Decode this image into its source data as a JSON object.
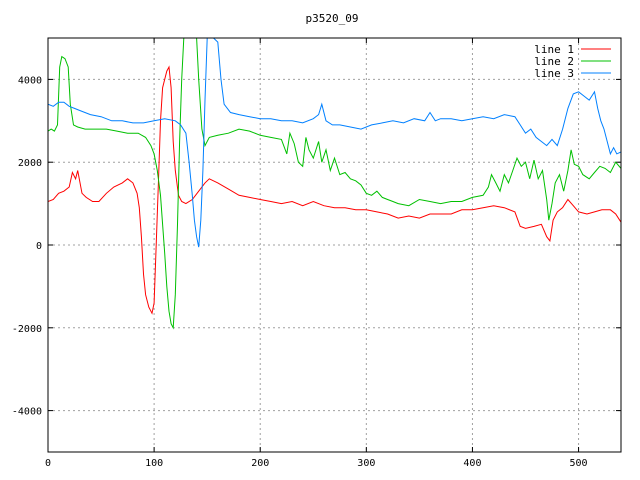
{
  "chart_data": {
    "type": "line",
    "title": "p3520_09",
    "xlabel": "",
    "ylabel": "",
    "xlim": [
      0,
      540
    ],
    "ylim": [
      -5000,
      5000
    ],
    "xticks": [
      0,
      100,
      200,
      300,
      400,
      500
    ],
    "yticks": [
      -4000,
      -2000,
      0,
      2000,
      4000
    ],
    "grid": true,
    "legend_position": "top-right",
    "series": [
      {
        "name": "line 1",
        "color": "#ff0000",
        "points": [
          [
            0,
            1050
          ],
          [
            5,
            1100
          ],
          [
            10,
            1250
          ],
          [
            15,
            1300
          ],
          [
            20,
            1400
          ],
          [
            23,
            1750
          ],
          [
            26,
            1600
          ],
          [
            28,
            1800
          ],
          [
            32,
            1250
          ],
          [
            36,
            1150
          ],
          [
            42,
            1050
          ],
          [
            48,
            1050
          ],
          [
            55,
            1250
          ],
          [
            62,
            1400
          ],
          [
            70,
            1500
          ],
          [
            75,
            1600
          ],
          [
            80,
            1500
          ],
          [
            84,
            1250
          ],
          [
            86,
            900
          ],
          [
            88,
            200
          ],
          [
            90,
            -700
          ],
          [
            92,
            -1200
          ],
          [
            95,
            -1500
          ],
          [
            98,
            -1650
          ],
          [
            100,
            -1400
          ],
          [
            102,
            0
          ],
          [
            104,
            1500
          ],
          [
            106,
            3000
          ],
          [
            108,
            3800
          ],
          [
            110,
            4000
          ],
          [
            112,
            4200
          ],
          [
            114,
            4300
          ],
          [
            116,
            3800
          ],
          [
            118,
            2500
          ],
          [
            120,
            1800
          ],
          [
            123,
            1200
          ],
          [
            126,
            1050
          ],
          [
            130,
            1000
          ],
          [
            136,
            1100
          ],
          [
            142,
            1300
          ],
          [
            148,
            1500
          ],
          [
            152,
            1600
          ],
          [
            160,
            1500
          ],
          [
            170,
            1350
          ],
          [
            180,
            1200
          ],
          [
            190,
            1150
          ],
          [
            200,
            1100
          ],
          [
            210,
            1050
          ],
          [
            220,
            1000
          ],
          [
            230,
            1050
          ],
          [
            240,
            950
          ],
          [
            250,
            1050
          ],
          [
            260,
            950
          ],
          [
            270,
            900
          ],
          [
            280,
            900
          ],
          [
            290,
            850
          ],
          [
            300,
            850
          ],
          [
            310,
            800
          ],
          [
            320,
            750
          ],
          [
            330,
            650
          ],
          [
            340,
            700
          ],
          [
            350,
            650
          ],
          [
            360,
            750
          ],
          [
            370,
            750
          ],
          [
            380,
            750
          ],
          [
            390,
            850
          ],
          [
            400,
            850
          ],
          [
            410,
            900
          ],
          [
            420,
            950
          ],
          [
            430,
            900
          ],
          [
            440,
            800
          ],
          [
            445,
            450
          ],
          [
            450,
            400
          ],
          [
            458,
            450
          ],
          [
            465,
            500
          ],
          [
            470,
            200
          ],
          [
            473,
            100
          ],
          [
            476,
            600
          ],
          [
            480,
            800
          ],
          [
            485,
            900
          ],
          [
            490,
            1100
          ],
          [
            495,
            950
          ],
          [
            500,
            800
          ],
          [
            508,
            750
          ],
          [
            515,
            800
          ],
          [
            522,
            850
          ],
          [
            530,
            850
          ],
          [
            535,
            750
          ],
          [
            540,
            550
          ]
        ]
      },
      {
        "name": "line 2",
        "color": "#00c000",
        "points": [
          [
            0,
            2750
          ],
          [
            3,
            2800
          ],
          [
            6,
            2750
          ],
          [
            9,
            2900
          ],
          [
            11,
            4300
          ],
          [
            13,
            4550
          ],
          [
            16,
            4500
          ],
          [
            19,
            4300
          ],
          [
            21,
            3400
          ],
          [
            24,
            2900
          ],
          [
            28,
            2850
          ],
          [
            35,
            2800
          ],
          [
            45,
            2800
          ],
          [
            55,
            2800
          ],
          [
            65,
            2750
          ],
          [
            75,
            2700
          ],
          [
            85,
            2700
          ],
          [
            92,
            2600
          ],
          [
            97,
            2400
          ],
          [
            100,
            2200
          ],
          [
            103,
            1800
          ],
          [
            106,
            1200
          ],
          [
            108,
            500
          ],
          [
            110,
            -200
          ],
          [
            112,
            -1000
          ],
          [
            114,
            -1600
          ],
          [
            116,
            -1900
          ],
          [
            118,
            -2000
          ],
          [
            120,
            -1200
          ],
          [
            122,
            500
          ],
          [
            124,
            2500
          ],
          [
            126,
            4000
          ],
          [
            128,
            5000
          ],
          [
            130,
            5000
          ],
          [
            140,
            5000
          ],
          [
            142,
            4000
          ],
          [
            145,
            2800
          ],
          [
            148,
            2400
          ],
          [
            152,
            2600
          ],
          [
            160,
            2650
          ],
          [
            170,
            2700
          ],
          [
            180,
            2800
          ],
          [
            190,
            2750
          ],
          [
            200,
            2650
          ],
          [
            210,
            2600
          ],
          [
            220,
            2550
          ],
          [
            225,
            2200
          ],
          [
            228,
            2700
          ],
          [
            232,
            2450
          ],
          [
            236,
            2000
          ],
          [
            240,
            1900
          ],
          [
            243,
            2600
          ],
          [
            246,
            2300
          ],
          [
            250,
            2100
          ],
          [
            255,
            2500
          ],
          [
            258,
            2000
          ],
          [
            262,
            2300
          ],
          [
            266,
            1800
          ],
          [
            270,
            2100
          ],
          [
            275,
            1700
          ],
          [
            280,
            1750
          ],
          [
            285,
            1600
          ],
          [
            290,
            1550
          ],
          [
            295,
            1450
          ],
          [
            300,
            1250
          ],
          [
            305,
            1200
          ],
          [
            310,
            1300
          ],
          [
            315,
            1150
          ],
          [
            320,
            1100
          ],
          [
            325,
            1050
          ],
          [
            330,
            1000
          ],
          [
            340,
            950
          ],
          [
            350,
            1100
          ],
          [
            360,
            1050
          ],
          [
            370,
            1000
          ],
          [
            380,
            1050
          ],
          [
            390,
            1050
          ],
          [
            400,
            1150
          ],
          [
            410,
            1200
          ],
          [
            415,
            1400
          ],
          [
            418,
            1700
          ],
          [
            422,
            1500
          ],
          [
            426,
            1300
          ],
          [
            430,
            1700
          ],
          [
            434,
            1500
          ],
          [
            438,
            1800
          ],
          [
            442,
            2100
          ],
          [
            446,
            1900
          ],
          [
            450,
            2000
          ],
          [
            454,
            1600
          ],
          [
            458,
            2050
          ],
          [
            462,
            1600
          ],
          [
            466,
            1800
          ],
          [
            470,
            1100
          ],
          [
            472,
            600
          ],
          [
            475,
            1000
          ],
          [
            478,
            1500
          ],
          [
            482,
            1700
          ],
          [
            486,
            1300
          ],
          [
            490,
            1800
          ],
          [
            493,
            2300
          ],
          [
            496,
            1950
          ],
          [
            500,
            1900
          ],
          [
            504,
            1700
          ],
          [
            510,
            1600
          ],
          [
            515,
            1750
          ],
          [
            520,
            1900
          ],
          [
            525,
            1850
          ],
          [
            530,
            1750
          ],
          [
            535,
            2000
          ],
          [
            540,
            1850
          ]
        ]
      },
      {
        "name": "line 3",
        "color": "#0080ff",
        "points": [
          [
            0,
            3400
          ],
          [
            5,
            3350
          ],
          [
            10,
            3450
          ],
          [
            15,
            3450
          ],
          [
            20,
            3350
          ],
          [
            25,
            3300
          ],
          [
            30,
            3250
          ],
          [
            40,
            3150
          ],
          [
            50,
            3100
          ],
          [
            60,
            3000
          ],
          [
            70,
            3000
          ],
          [
            80,
            2950
          ],
          [
            90,
            2950
          ],
          [
            100,
            3000
          ],
          [
            110,
            3050
          ],
          [
            120,
            3000
          ],
          [
            125,
            2900
          ],
          [
            130,
            2700
          ],
          [
            133,
            2000
          ],
          [
            136,
            1200
          ],
          [
            138,
            600
          ],
          [
            140,
            200
          ],
          [
            142,
            -50
          ],
          [
            144,
            600
          ],
          [
            146,
            1800
          ],
          [
            148,
            3500
          ],
          [
            150,
            5000
          ],
          [
            156,
            5000
          ],
          [
            160,
            4900
          ],
          [
            163,
            4000
          ],
          [
            166,
            3400
          ],
          [
            172,
            3200
          ],
          [
            180,
            3150
          ],
          [
            190,
            3100
          ],
          [
            200,
            3050
          ],
          [
            210,
            3050
          ],
          [
            220,
            3000
          ],
          [
            230,
            3000
          ],
          [
            240,
            2950
          ],
          [
            250,
            3050
          ],
          [
            255,
            3150
          ],
          [
            258,
            3400
          ],
          [
            262,
            3000
          ],
          [
            268,
            2900
          ],
          [
            275,
            2900
          ],
          [
            285,
            2850
          ],
          [
            295,
            2800
          ],
          [
            305,
            2900
          ],
          [
            315,
            2950
          ],
          [
            325,
            3000
          ],
          [
            335,
            2950
          ],
          [
            345,
            3050
          ],
          [
            355,
            3000
          ],
          [
            360,
            3200
          ],
          [
            365,
            3000
          ],
          [
            370,
            3050
          ],
          [
            380,
            3050
          ],
          [
            390,
            3000
          ],
          [
            400,
            3050
          ],
          [
            410,
            3100
          ],
          [
            420,
            3050
          ],
          [
            430,
            3150
          ],
          [
            440,
            3100
          ],
          [
            445,
            2900
          ],
          [
            450,
            2700
          ],
          [
            455,
            2800
          ],
          [
            460,
            2600
          ],
          [
            465,
            2500
          ],
          [
            470,
            2400
          ],
          [
            475,
            2550
          ],
          [
            480,
            2400
          ],
          [
            485,
            2800
          ],
          [
            490,
            3300
          ],
          [
            495,
            3650
          ],
          [
            500,
            3700
          ],
          [
            505,
            3600
          ],
          [
            510,
            3500
          ],
          [
            515,
            3700
          ],
          [
            518,
            3300
          ],
          [
            521,
            3000
          ],
          [
            524,
            2800
          ],
          [
            527,
            2500
          ],
          [
            530,
            2200
          ],
          [
            533,
            2350
          ],
          [
            536,
            2200
          ],
          [
            540,
            2250
          ]
        ]
      }
    ]
  }
}
